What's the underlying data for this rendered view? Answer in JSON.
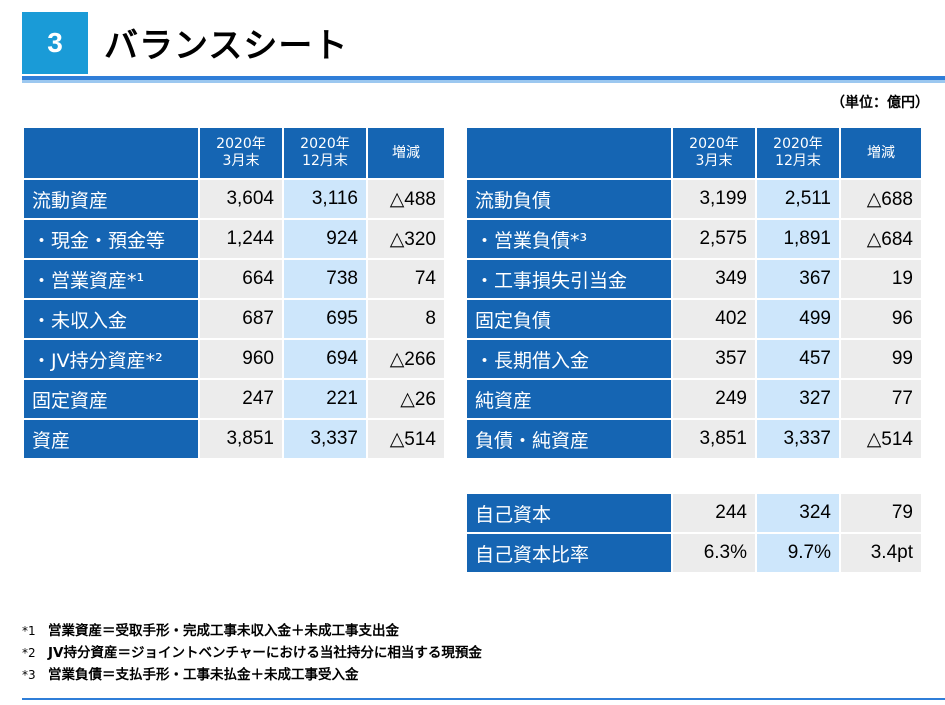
{
  "header": {
    "section_number": "3",
    "title": "バランスシート",
    "unit": "（単位：億円）"
  },
  "columns": {
    "mar": "2020年\n3月末",
    "dec": "2020年\n12月末",
    "chg": "増減"
  },
  "assets": [
    {
      "label": "流動資産",
      "mar": "3,604",
      "dec": "3,116",
      "chg": "△488"
    },
    {
      "label": "・現金・預金等",
      "mar": "1,244",
      "dec": "924",
      "chg": "△320"
    },
    {
      "label": "・営業資産*¹",
      "mar": "664",
      "dec": "738",
      "chg": "74"
    },
    {
      "label": "・未収入金",
      "mar": "687",
      "dec": "695",
      "chg": "8"
    },
    {
      "label": "・JV持分資産*²",
      "mar": "960",
      "dec": "694",
      "chg": "△266"
    },
    {
      "label": "固定資産",
      "mar": "247",
      "dec": "221",
      "chg": "△26"
    },
    {
      "label": "資産",
      "mar": "3,851",
      "dec": "3,337",
      "chg": "△514"
    }
  ],
  "liabilities": [
    {
      "label": "流動負債",
      "mar": "3,199",
      "dec": "2,511",
      "chg": "△688"
    },
    {
      "label": "・営業負債*³",
      "mar": "2,575",
      "dec": "1,891",
      "chg": "△684"
    },
    {
      "label": "・工事損失引当金",
      "mar": "349",
      "dec": "367",
      "chg": "19"
    },
    {
      "label": "固定負債",
      "mar": "402",
      "dec": "499",
      "chg": "96"
    },
    {
      "label": "・長期借入金",
      "mar": "357",
      "dec": "457",
      "chg": "99"
    },
    {
      "label": "純資産",
      "mar": "249",
      "dec": "327",
      "chg": "77"
    },
    {
      "label": "負債・純資産",
      "mar": "3,851",
      "dec": "3,337",
      "chg": "△514"
    }
  ],
  "equity": [
    {
      "label": "自己資本",
      "mar": "244",
      "dec": "324",
      "chg": "79"
    },
    {
      "label": "自己資本比率",
      "mar": "6.3%",
      "dec": "9.7%",
      "chg": "3.4pt"
    }
  ],
  "notes": [
    {
      "mark": "*1",
      "text": "営業資産＝受取手形・完成工事未収入金＋未成工事支出金"
    },
    {
      "mark": "*2",
      "text": "JV持分資産＝ジョイントベンチャーにおける当社持分に相当する現預金"
    },
    {
      "mark": "*3",
      "text": "営業負債＝支払手形・工事未払金＋未成工事受入金"
    }
  ],
  "colors": {
    "accent": "#1565b3",
    "badge": "#1a9bd7",
    "highlight": "#cde6fb",
    "cell": "#ececec"
  }
}
